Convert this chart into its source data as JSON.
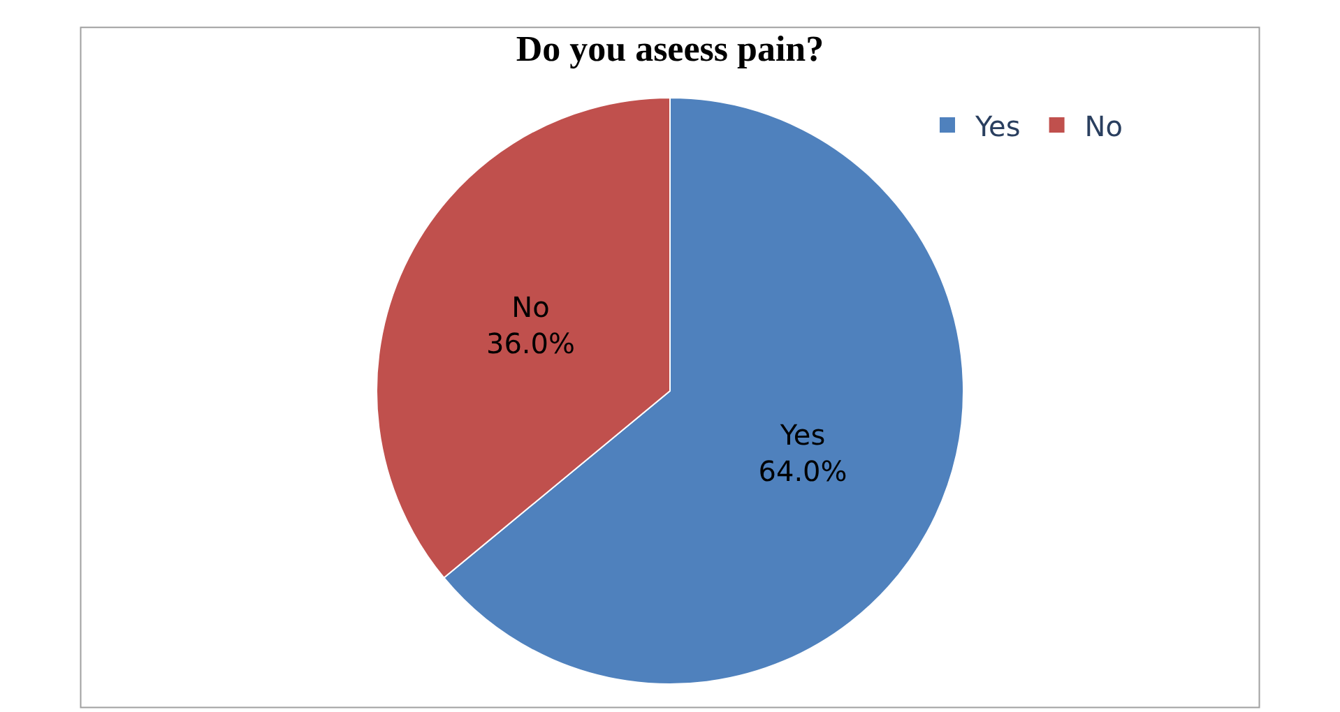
{
  "chart_data": {
    "type": "pie",
    "title": "Do you aseess pain?",
    "categories": [
      "Yes",
      "No"
    ],
    "values": [
      64.0,
      36.0
    ],
    "value_labels": [
      "64.0%",
      "36.0%"
    ],
    "colors": [
      "#4f81bd",
      "#c0504d"
    ],
    "legend": "top right"
  }
}
